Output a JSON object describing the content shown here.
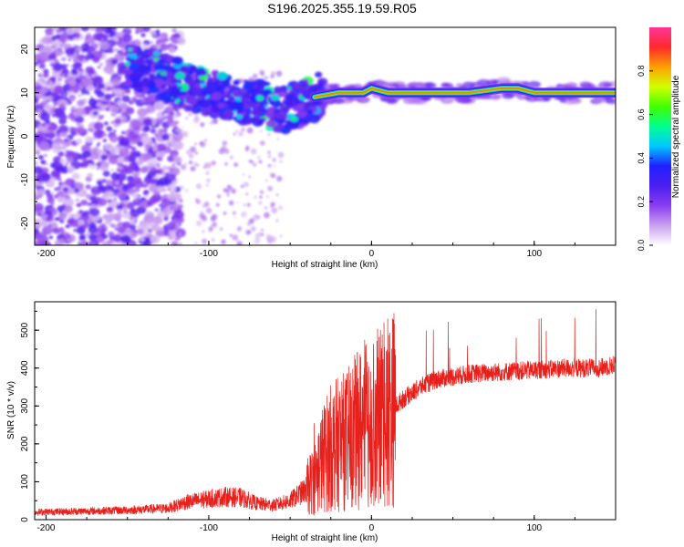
{
  "title": "S196.2025.355.19.59.R05",
  "colors": {
    "snr_line": "#e8201c",
    "axis": "#000000",
    "colormap": [
      "#ffffff",
      "#c9a0f0",
      "#8a3df0",
      "#4b1ff0",
      "#2020ff",
      "#00c8ff",
      "#00ff90",
      "#40ff00",
      "#d0ff00",
      "#ffa000",
      "#ff2a2a",
      "#ff3399"
    ]
  },
  "chart_data": [
    {
      "type": "heatmap",
      "xlabel": "Height of straight line (km)",
      "ylabel": "Frequency (Hz)",
      "xlim": [
        -207,
        150
      ],
      "ylim": [
        -25,
        25
      ],
      "x_ticks": [
        -200,
        -100,
        0,
        100
      ],
      "y_ticks": [
        -20,
        -10,
        0,
        10,
        20
      ],
      "ridge": {
        "description_points_x": [
          -150,
          -130,
          -110,
          -90,
          -70,
          -55,
          -45,
          -35,
          -20,
          -5,
          0,
          10,
          30,
          60,
          80,
          90,
          100,
          150
        ],
        "frequency_hz": [
          16,
          14,
          11,
          9,
          8,
          6,
          7,
          9,
          10,
          10,
          11,
          10,
          10,
          10,
          11,
          11,
          10,
          10
        ]
      },
      "colorbar": {
        "label": "Normalized spectral amplitude",
        "range": [
          0,
          1
        ],
        "ticks": [
          0.0,
          0.2,
          0.4,
          0.6,
          0.8
        ]
      }
    },
    {
      "type": "line",
      "xlabel": "Height of straight line (km)",
      "ylabel": "SNR (10 * v/v)",
      "xlim": [
        -207,
        150
      ],
      "ylim": [
        0,
        575
      ],
      "x_ticks": [
        -200,
        -100,
        0,
        100
      ],
      "y_ticks": [
        0,
        100,
        200,
        300,
        400,
        500
      ],
      "series": [
        {
          "x": [
            -207,
            -180,
            -150,
            -125,
            -115,
            -100,
            -90,
            -80,
            -70,
            -60,
            -50,
            -40,
            -35,
            -30,
            -25,
            -20,
            -15,
            -10,
            -5,
            0,
            10,
            20,
            30,
            40,
            60,
            80,
            100,
            120,
            140,
            150
          ],
          "y": [
            20,
            22,
            25,
            30,
            45,
            55,
            60,
            58,
            42,
            38,
            50,
            80,
            110,
            160,
            190,
            200,
            210,
            230,
            250,
            260,
            280,
            320,
            350,
            370,
            385,
            390,
            395,
            400,
            400,
            410
          ]
        }
      ]
    }
  ]
}
